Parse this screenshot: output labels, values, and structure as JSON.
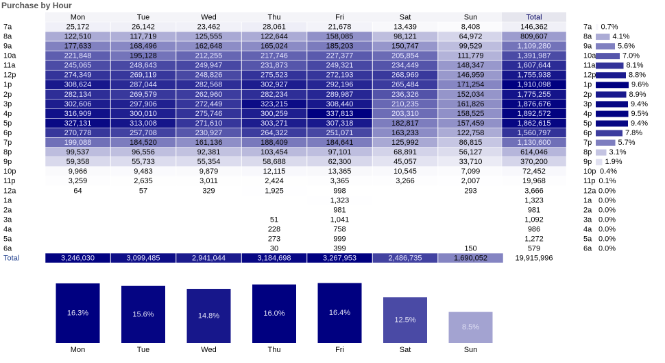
{
  "title": "Purchase by Hour",
  "table": {
    "columns": [
      "Mon",
      "Tue",
      "Wed",
      "Thu",
      "Fri",
      "Sat",
      "Sun",
      "Total"
    ],
    "color": "#000080",
    "rows": [
      {
        "label": "7a",
        "cells": [
          "25,172",
          "26,142",
          "23,462",
          "28,061",
          "21,678",
          "13,439",
          "8,408",
          "146,362"
        ]
      },
      {
        "label": "8a",
        "cells": [
          "122,510",
          "117,719",
          "125,555",
          "122,644",
          "158,085",
          "98,121",
          "64,972",
          "809,607"
        ]
      },
      {
        "label": "9a",
        "cells": [
          "177,633",
          "168,496",
          "162,648",
          "165,024",
          "185,203",
          "150,747",
          "99,529",
          "1,109,280"
        ]
      },
      {
        "label": "10a",
        "cells": [
          "221,848",
          "195,128",
          "212,255",
          "217,746",
          "227,377",
          "205,854",
          "111,779",
          "1,391,987"
        ]
      },
      {
        "label": "11a",
        "cells": [
          "245,065",
          "248,643",
          "249,947",
          "231,873",
          "249,321",
          "234,449",
          "148,347",
          "1,607,644"
        ]
      },
      {
        "label": "12p",
        "cells": [
          "274,349",
          "269,119",
          "248,826",
          "275,523",
          "272,193",
          "268,969",
          "146,959",
          "1,755,938"
        ]
      },
      {
        "label": "1p",
        "cells": [
          "308,624",
          "287,044",
          "282,568",
          "302,927",
          "292,196",
          "265,484",
          "171,254",
          "1,910,098"
        ]
      },
      {
        "label": "2p",
        "cells": [
          "282,134",
          "269,579",
          "262,960",
          "282,234",
          "289,987",
          "236,326",
          "152,034",
          "1,775,255"
        ]
      },
      {
        "label": "3p",
        "cells": [
          "302,606",
          "297,906",
          "272,449",
          "323,215",
          "308,440",
          "210,235",
          "161,826",
          "1,876,676"
        ]
      },
      {
        "label": "4p",
        "cells": [
          "316,909",
          "300,010",
          "275,746",
          "300,259",
          "337,813",
          "203,310",
          "158,525",
          "1,892,572"
        ]
      },
      {
        "label": "5p",
        "cells": [
          "327,131",
          "313,008",
          "271,610",
          "303,271",
          "307,318",
          "182,817",
          "157,459",
          "1,862,615"
        ]
      },
      {
        "label": "6p",
        "cells": [
          "270,778",
          "257,708",
          "230,927",
          "264,322",
          "251,071",
          "163,233",
          "122,758",
          "1,560,797"
        ]
      },
      {
        "label": "7p",
        "cells": [
          "199,088",
          "184,520",
          "161,136",
          "188,409",
          "184,641",
          "125,992",
          "86,815",
          "1,130,600"
        ]
      },
      {
        "label": "8p",
        "cells": [
          "99,537",
          "96,556",
          "92,381",
          "103,454",
          "97,101",
          "68,891",
          "56,127",
          "614,046"
        ]
      },
      {
        "label": "9p",
        "cells": [
          "59,358",
          "55,733",
          "55,354",
          "58,688",
          "62,300",
          "45,057",
          "33,710",
          "370,200"
        ]
      },
      {
        "label": "10p",
        "cells": [
          "9,966",
          "9,483",
          "9,879",
          "12,115",
          "13,365",
          "10,545",
          "7,099",
          "72,452"
        ]
      },
      {
        "label": "11p",
        "cells": [
          "3,259",
          "2,635",
          "3,011",
          "2,424",
          "3,365",
          "3,266",
          "2,007",
          "19,968"
        ]
      },
      {
        "label": "12a",
        "cells": [
          "64",
          "57",
          "329",
          "1,925",
          "998",
          null,
          "293",
          "3,666"
        ]
      },
      {
        "label": "1a",
        "cells": [
          null,
          null,
          null,
          null,
          "1,323",
          null,
          null,
          "1,323"
        ]
      },
      {
        "label": "2a",
        "cells": [
          null,
          null,
          null,
          null,
          "981",
          null,
          null,
          "981"
        ]
      },
      {
        "label": "3a",
        "cells": [
          null,
          null,
          null,
          "51",
          "1,041",
          null,
          null,
          "1,092"
        ]
      },
      {
        "label": "4a",
        "cells": [
          null,
          null,
          null,
          "228",
          "758",
          null,
          null,
          "986"
        ]
      },
      {
        "label": "5a",
        "cells": [
          null,
          null,
          null,
          "273",
          "999",
          null,
          null,
          "1,272"
        ]
      },
      {
        "label": "6a",
        "cells": [
          null,
          null,
          null,
          "30",
          "399",
          null,
          "150",
          "579"
        ]
      }
    ],
    "total_row": {
      "label": "Total",
      "cells": [
        "3,246,030",
        "3,099,485",
        "2,941,044",
        "3,184,698",
        "3,267,953",
        "2,486,735",
        "1,690,052",
        "19,915,996"
      ]
    }
  },
  "chart_data": [
    {
      "type": "hbar",
      "color": "#000080",
      "categories": [
        "7a",
        "8a",
        "9a",
        "10a",
        "11a",
        "12p",
        "1p",
        "2p",
        "3p",
        "4p",
        "5p",
        "6p",
        "7p",
        "8p",
        "9p",
        "10p",
        "11p",
        "12a",
        "1a",
        "2a",
        "3a",
        "4a",
        "5a",
        "6a"
      ],
      "values": [
        0.7,
        4.1,
        5.6,
        7.0,
        8.1,
        8.8,
        9.6,
        8.9,
        9.4,
        9.5,
        9.4,
        7.8,
        5.7,
        3.1,
        1.9,
        0.4,
        0.1,
        0,
        0,
        0,
        0,
        0,
        0,
        0
      ],
      "value_labels": [
        "0.7%",
        "4.1%",
        "5.6%",
        "7.0%",
        "8.1%",
        "8.8%",
        "9.6%",
        "8.9%",
        "9.4%",
        "9.5%",
        "9.4%",
        "7.8%",
        "5.7%",
        "3.1%",
        "1.9%",
        "0.4%",
        "0.1%",
        "0.0%",
        "0.0%",
        "0.0%",
        "0.0%",
        "0.0%",
        "0.0%",
        "0.0%"
      ]
    },
    {
      "type": "bar",
      "color": "#000080",
      "categories": [
        "Mon",
        "Tue",
        "Wed",
        "Thu",
        "Fri",
        "Sat",
        "Sun"
      ],
      "values": [
        16.3,
        15.6,
        14.8,
        16.0,
        16.4,
        12.5,
        8.5
      ],
      "value_labels": [
        "16.3%",
        "15.6%",
        "14.8%",
        "16.0%",
        "16.4%",
        "12.5%",
        "8.5%"
      ]
    }
  ]
}
